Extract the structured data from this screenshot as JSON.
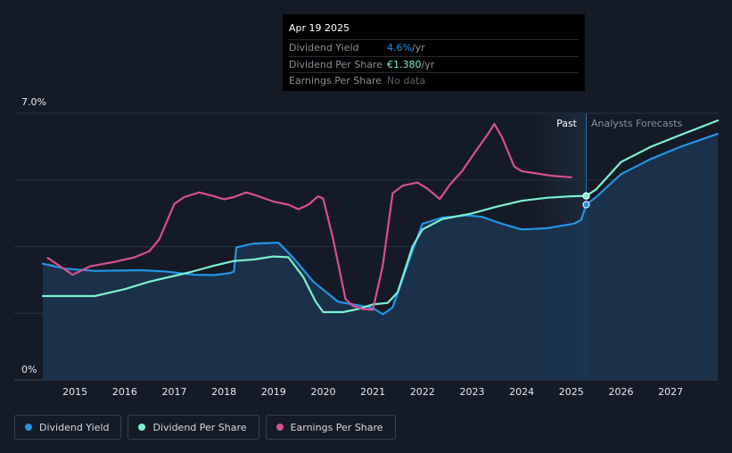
{
  "tooltip": {
    "date": "Apr 19 2025",
    "rows": [
      {
        "label": "Dividend Yield",
        "value": "4.6%",
        "unit": " /yr",
        "color": "#2394e6"
      },
      {
        "label": "Dividend Per Share",
        "value": "€1.380",
        "unit": " /yr",
        "color": "#7df0d0"
      },
      {
        "label": "Earnings Per Share",
        "value": "No data",
        "unit": "",
        "color": "#5b616b"
      }
    ]
  },
  "regions": {
    "past_label": "Past",
    "forecast_label": "Analysts Forecasts"
  },
  "legend": [
    {
      "label": "Dividend Yield",
      "color": "#2394e6"
    },
    {
      "label": "Dividend Per Share",
      "color": "#7df0d0"
    },
    {
      "label": "Earnings Per Share",
      "color": "#d6508f"
    }
  ],
  "chart_data": {
    "type": "line",
    "y_tick_labels": [
      "7.0%",
      "0%"
    ],
    "ylim": [
      0,
      7.0
    ],
    "xlim": [
      2014.35,
      2027.95
    ],
    "x_ticks": [
      2015,
      2016,
      2017,
      2018,
      2019,
      2020,
      2021,
      2022,
      2023,
      2024,
      2025,
      2026,
      2027
    ],
    "past_forecast_boundary": 2025.3,
    "past_shade_start": 2024.28,
    "grid": true,
    "series": [
      {
        "name": "Dividend Yield",
        "color": "#2394e6",
        "area": true,
        "points": [
          [
            2014.35,
            3.05
          ],
          [
            2014.8,
            2.92
          ],
          [
            2015.4,
            2.86
          ],
          [
            2016.3,
            2.88
          ],
          [
            2016.8,
            2.85
          ],
          [
            2017.4,
            2.76
          ],
          [
            2017.8,
            2.75
          ],
          [
            2018.1,
            2.8
          ],
          [
            2018.2,
            2.84
          ],
          [
            2018.25,
            3.48
          ],
          [
            2018.6,
            3.58
          ],
          [
            2019.1,
            3.6
          ],
          [
            2019.4,
            3.2
          ],
          [
            2019.8,
            2.58
          ],
          [
            2020.3,
            2.05
          ],
          [
            2020.7,
            1.96
          ],
          [
            2020.95,
            1.9
          ],
          [
            2021.05,
            1.85
          ],
          [
            2021.2,
            1.72
          ],
          [
            2021.4,
            1.9
          ],
          [
            2021.75,
            3.2
          ],
          [
            2022.0,
            4.1
          ],
          [
            2022.4,
            4.26
          ],
          [
            2022.9,
            4.32
          ],
          [
            2023.2,
            4.28
          ],
          [
            2023.6,
            4.1
          ],
          [
            2024.0,
            3.95
          ],
          [
            2024.5,
            3.98
          ],
          [
            2025.05,
            4.1
          ],
          [
            2025.2,
            4.2
          ],
          [
            2025.3,
            4.6
          ],
          [
            2025.5,
            4.8
          ],
          [
            2026.0,
            5.4
          ],
          [
            2026.6,
            5.8
          ],
          [
            2027.2,
            6.12
          ],
          [
            2027.95,
            6.46
          ]
        ]
      },
      {
        "name": "Dividend Per Share",
        "color": "#7df0d0",
        "area": false,
        "points": [
          [
            2014.35,
            2.2
          ],
          [
            2015.0,
            2.2
          ],
          [
            2015.4,
            2.2
          ],
          [
            2016.0,
            2.38
          ],
          [
            2016.5,
            2.58
          ],
          [
            2017.3,
            2.82
          ],
          [
            2017.8,
            3.0
          ],
          [
            2018.2,
            3.12
          ],
          [
            2018.6,
            3.16
          ],
          [
            2019.0,
            3.24
          ],
          [
            2019.3,
            3.22
          ],
          [
            2019.6,
            2.7
          ],
          [
            2019.85,
            2.05
          ],
          [
            2020.0,
            1.78
          ],
          [
            2020.4,
            1.78
          ],
          [
            2020.7,
            1.86
          ],
          [
            2021.0,
            1.98
          ],
          [
            2021.3,
            2.02
          ],
          [
            2021.5,
            2.3
          ],
          [
            2021.8,
            3.5
          ],
          [
            2022.0,
            3.95
          ],
          [
            2022.4,
            4.22
          ],
          [
            2023.0,
            4.37
          ],
          [
            2023.5,
            4.55
          ],
          [
            2024.0,
            4.7
          ],
          [
            2024.5,
            4.78
          ],
          [
            2025.0,
            4.82
          ],
          [
            2025.3,
            4.83
          ],
          [
            2025.5,
            5.0
          ],
          [
            2026.0,
            5.72
          ],
          [
            2026.6,
            6.12
          ],
          [
            2027.2,
            6.43
          ],
          [
            2027.95,
            6.81
          ]
        ]
      },
      {
        "name": "Earnings Per Share",
        "color": "#d6508f",
        "area": false,
        "points": [
          [
            2014.45,
            3.2
          ],
          [
            2014.7,
            2.98
          ],
          [
            2014.95,
            2.76
          ],
          [
            2015.3,
            2.98
          ],
          [
            2015.8,
            3.1
          ],
          [
            2016.2,
            3.22
          ],
          [
            2016.5,
            3.38
          ],
          [
            2016.7,
            3.7
          ],
          [
            2017.0,
            4.62
          ],
          [
            2017.2,
            4.8
          ],
          [
            2017.5,
            4.92
          ],
          [
            2017.8,
            4.82
          ],
          [
            2018.0,
            4.74
          ],
          [
            2018.2,
            4.8
          ],
          [
            2018.45,
            4.92
          ],
          [
            2018.7,
            4.82
          ],
          [
            2019.0,
            4.68
          ],
          [
            2019.3,
            4.6
          ],
          [
            2019.5,
            4.48
          ],
          [
            2019.7,
            4.6
          ],
          [
            2019.9,
            4.82
          ],
          [
            2020.0,
            4.76
          ],
          [
            2020.2,
            3.7
          ],
          [
            2020.45,
            2.12
          ],
          [
            2020.6,
            1.94
          ],
          [
            2020.8,
            1.86
          ],
          [
            2021.0,
            1.84
          ],
          [
            2021.2,
            3.0
          ],
          [
            2021.4,
            4.9
          ],
          [
            2021.6,
            5.1
          ],
          [
            2021.9,
            5.18
          ],
          [
            2022.1,
            5.02
          ],
          [
            2022.35,
            4.75
          ],
          [
            2022.55,
            5.12
          ],
          [
            2022.8,
            5.48
          ],
          [
            2023.05,
            5.96
          ],
          [
            2023.3,
            6.42
          ],
          [
            2023.45,
            6.72
          ],
          [
            2023.6,
            6.38
          ],
          [
            2023.85,
            5.6
          ],
          [
            2024.0,
            5.48
          ],
          [
            2024.3,
            5.42
          ],
          [
            2024.6,
            5.36
          ],
          [
            2025.0,
            5.32
          ]
        ]
      }
    ],
    "markers": [
      {
        "series": "Dividend Per Share",
        "x": 2025.3,
        "y": 4.83
      },
      {
        "series": "Dividend Yield",
        "x": 2025.3,
        "y": 4.6
      }
    ]
  }
}
